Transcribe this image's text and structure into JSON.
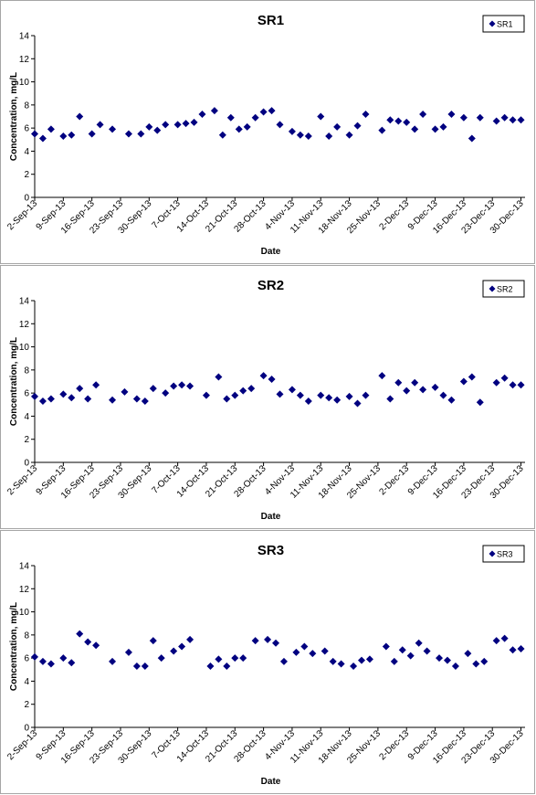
{
  "chart_data": [
    {
      "type": "scatter",
      "title": "SR1",
      "xlabel": "Date",
      "ylabel": "Concentration, mg/L",
      "ylim": [
        0,
        14
      ],
      "yticks": [
        "0",
        "2",
        "4",
        "6",
        "8",
        "10",
        "12",
        "14"
      ],
      "xlim": [
        "2-Sep-13",
        "31-Dec-13"
      ],
      "xticks": [
        "2-Sep-13",
        "9-Sep-13",
        "16-Sep-13",
        "23-Sep-13",
        "30-Sep-13",
        "7-Oct-13",
        "14-Oct-13",
        "21-Oct-13",
        "28-Oct-13",
        "4-Nov-13",
        "11-Nov-13",
        "18-Nov-13",
        "25-Nov-13",
        "2-Dec-13",
        "9-Dec-13",
        "16-Dec-13",
        "23-Dec-13",
        "30-Dec-13"
      ],
      "grid": false,
      "legend_position": "top-right",
      "color": "#000080",
      "series": [
        {
          "name": "SR1",
          "x": [
            "2-Sep-13",
            "4-Sep-13",
            "6-Sep-13",
            "9-Sep-13",
            "11-Sep-13",
            "13-Sep-13",
            "16-Sep-13",
            "18-Sep-13",
            "21-Sep-13",
            "25-Sep-13",
            "28-Sep-13",
            "30-Sep-13",
            "2-Oct-13",
            "4-Oct-13",
            "7-Oct-13",
            "9-Oct-13",
            "11-Oct-13",
            "13-Oct-13",
            "16-Oct-13",
            "18-Oct-13",
            "20-Oct-13",
            "22-Oct-13",
            "24-Oct-13",
            "26-Oct-13",
            "28-Oct-13",
            "30-Oct-13",
            "1-Nov-13",
            "4-Nov-13",
            "6-Nov-13",
            "8-Nov-13",
            "11-Nov-13",
            "13-Nov-13",
            "15-Nov-13",
            "18-Nov-13",
            "20-Nov-13",
            "22-Nov-13",
            "26-Nov-13",
            "28-Nov-13",
            "30-Nov-13",
            "2-Dec-13",
            "4-Dec-13",
            "6-Dec-13",
            "9-Dec-13",
            "11-Dec-13",
            "13-Dec-13",
            "16-Dec-13",
            "18-Dec-13",
            "20-Dec-13",
            "24-Dec-13",
            "26-Dec-13",
            "28-Dec-13",
            "30-Dec-13"
          ],
          "y": [
            5.5,
            5.1,
            5.9,
            5.3,
            5.4,
            7.0,
            5.5,
            6.3,
            5.9,
            5.5,
            5.5,
            6.1,
            5.8,
            6.3,
            6.3,
            6.4,
            6.5,
            7.2,
            7.5,
            5.4,
            6.9,
            5.9,
            6.1,
            6.9,
            7.4,
            7.5,
            6.3,
            5.7,
            5.4,
            5.3,
            7.0,
            5.3,
            6.1,
            5.4,
            6.2,
            7.2,
            5.8,
            6.7,
            6.6,
            6.5,
            5.9,
            7.2,
            5.9,
            6.1,
            7.2,
            6.9,
            5.1,
            6.9,
            6.6,
            6.9,
            6.7,
            6.7
          ]
        }
      ]
    },
    {
      "type": "scatter",
      "title": "SR2",
      "xlabel": "Date",
      "ylabel": "Concentration, mg/L",
      "ylim": [
        0,
        14
      ],
      "yticks": [
        "0",
        "2",
        "4",
        "6",
        "8",
        "10",
        "12",
        "14"
      ],
      "xlim": [
        "2-Sep-13",
        "31-Dec-13"
      ],
      "xticks": [
        "2-Sep-13",
        "9-Sep-13",
        "16-Sep-13",
        "23-Sep-13",
        "30-Sep-13",
        "7-Oct-13",
        "14-Oct-13",
        "21-Oct-13",
        "28-Oct-13",
        "4-Nov-13",
        "11-Nov-13",
        "18-Nov-13",
        "25-Nov-13",
        "2-Dec-13",
        "9-Dec-13",
        "16-Dec-13",
        "23-Dec-13",
        "30-Dec-13"
      ],
      "grid": false,
      "legend_position": "top-right",
      "color": "#000080",
      "series": [
        {
          "name": "SR2",
          "x": [
            "2-Sep-13",
            "4-Sep-13",
            "6-Sep-13",
            "9-Sep-13",
            "11-Sep-13",
            "13-Sep-13",
            "15-Sep-13",
            "17-Sep-13",
            "21-Sep-13",
            "24-Sep-13",
            "27-Sep-13",
            "29-Sep-13",
            "1-Oct-13",
            "4-Oct-13",
            "6-Oct-13",
            "8-Oct-13",
            "10-Oct-13",
            "14-Oct-13",
            "17-Oct-13",
            "19-Oct-13",
            "21-Oct-13",
            "23-Oct-13",
            "25-Oct-13",
            "28-Oct-13",
            "30-Oct-13",
            "1-Nov-13",
            "4-Nov-13",
            "6-Nov-13",
            "8-Nov-13",
            "11-Nov-13",
            "13-Nov-13",
            "15-Nov-13",
            "18-Nov-13",
            "20-Nov-13",
            "22-Nov-13",
            "26-Nov-13",
            "28-Nov-13",
            "30-Nov-13",
            "2-Dec-13",
            "4-Dec-13",
            "6-Dec-13",
            "9-Dec-13",
            "11-Dec-13",
            "13-Dec-13",
            "16-Dec-13",
            "18-Dec-13",
            "20-Dec-13",
            "24-Dec-13",
            "26-Dec-13",
            "28-Dec-13",
            "30-Dec-13"
          ],
          "y": [
            5.7,
            5.3,
            5.5,
            5.9,
            5.6,
            6.4,
            5.5,
            6.7,
            5.4,
            6.1,
            5.5,
            5.3,
            6.4,
            6.0,
            6.6,
            6.7,
            6.6,
            5.8,
            7.4,
            5.5,
            5.8,
            6.2,
            6.4,
            7.5,
            7.2,
            5.9,
            6.3,
            5.8,
            5.3,
            5.8,
            5.6,
            5.4,
            5.7,
            5.1,
            5.8,
            7.5,
            5.5,
            6.9,
            6.2,
            6.9,
            6.3,
            6.5,
            5.8,
            5.4,
            7.0,
            7.4,
            5.2,
            6.9,
            7.3,
            6.7,
            6.7
          ]
        }
      ]
    },
    {
      "type": "scatter",
      "title": "SR3",
      "xlabel": "Date",
      "ylabel": "Concentration, mg/L",
      "ylim": [
        0,
        14
      ],
      "yticks": [
        "0",
        "2",
        "4",
        "6",
        "8",
        "10",
        "12",
        "14"
      ],
      "xlim": [
        "2-Sep-13",
        "31-Dec-13"
      ],
      "xticks": [
        "2-Sep-13",
        "9-Sep-13",
        "16-Sep-13",
        "23-Sep-13",
        "30-Sep-13",
        "7-Oct-13",
        "14-Oct-13",
        "21-Oct-13",
        "28-Oct-13",
        "4-Nov-13",
        "11-Nov-13",
        "18-Nov-13",
        "25-Nov-13",
        "2-Dec-13",
        "9-Dec-13",
        "16-Dec-13",
        "23-Dec-13",
        "30-Dec-13"
      ],
      "grid": false,
      "legend_position": "top-right",
      "color": "#000080",
      "series": [
        {
          "name": "SR3",
          "x": [
            "2-Sep-13",
            "4-Sep-13",
            "6-Sep-13",
            "9-Sep-13",
            "11-Sep-13",
            "13-Sep-13",
            "15-Sep-13",
            "17-Sep-13",
            "21-Sep-13",
            "25-Sep-13",
            "27-Sep-13",
            "29-Sep-13",
            "1-Oct-13",
            "3-Oct-13",
            "6-Oct-13",
            "8-Oct-13",
            "10-Oct-13",
            "15-Oct-13",
            "17-Oct-13",
            "19-Oct-13",
            "21-Oct-13",
            "23-Oct-13",
            "26-Oct-13",
            "29-Oct-13",
            "31-Oct-13",
            "2-Nov-13",
            "5-Nov-13",
            "7-Nov-13",
            "9-Nov-13",
            "12-Nov-13",
            "14-Nov-13",
            "16-Nov-13",
            "19-Nov-13",
            "21-Nov-13",
            "23-Nov-13",
            "27-Nov-13",
            "29-Nov-13",
            "1-Dec-13",
            "3-Dec-13",
            "5-Dec-13",
            "7-Dec-13",
            "10-Dec-13",
            "12-Dec-13",
            "14-Dec-13",
            "17-Dec-13",
            "19-Dec-13",
            "21-Dec-13",
            "24-Dec-13",
            "26-Dec-13",
            "28-Dec-13",
            "30-Dec-13"
          ],
          "y": [
            6.1,
            5.7,
            5.5,
            6.0,
            5.6,
            8.1,
            7.4,
            7.1,
            5.7,
            6.5,
            5.3,
            5.3,
            7.5,
            6.0,
            6.6,
            7.0,
            7.6,
            5.3,
            5.9,
            5.3,
            6.0,
            6.0,
            7.5,
            7.6,
            7.3,
            5.7,
            6.5,
            7.0,
            6.4,
            6.6,
            5.7,
            5.5,
            5.3,
            5.8,
            5.9,
            7.0,
            5.7,
            6.7,
            6.2,
            7.3,
            6.6,
            6.0,
            5.8,
            5.3,
            6.4,
            5.5,
            5.7,
            7.5,
            7.7,
            6.7,
            6.8
          ]
        }
      ]
    }
  ]
}
